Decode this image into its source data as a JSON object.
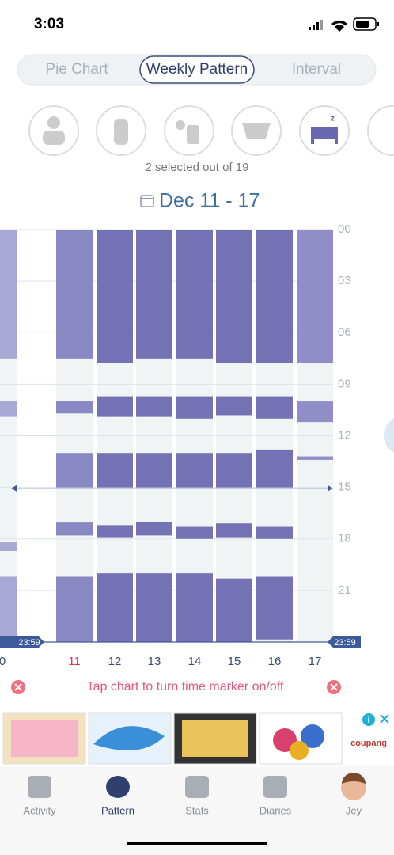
{
  "status": {
    "time": "3:03"
  },
  "tabs": [
    "Pie Chart",
    "Weekly Pattern",
    "Interval"
  ],
  "selected_tab": 1,
  "selected_text": "2 selected out of 19",
  "date_range": "Dec 11 - 17",
  "chart": {
    "hour_ticks": [
      {
        "value": 0,
        "label": "00"
      },
      {
        "value": 3,
        "label": "03"
      },
      {
        "value": 6,
        "label": "06"
      },
      {
        "value": 9,
        "label": "09"
      },
      {
        "value": 12,
        "label": "12"
      },
      {
        "value": 15,
        "label": "15"
      },
      {
        "value": 18,
        "label": "18"
      },
      {
        "value": 21,
        "label": "21"
      }
    ],
    "range": [
      0,
      24
    ],
    "end_label": "23:59",
    "time_marker": 15.05,
    "previous_day": {
      "label": "0",
      "color": "#a9a7d3",
      "segments": [
        [
          0,
          7.5
        ],
        [
          10,
          10.9
        ],
        [
          18.2,
          18.7
        ],
        [
          20.2,
          23.7
        ]
      ]
    },
    "days": [
      {
        "label": "11",
        "label_color": "#d8364a",
        "color": "#8a88c3",
        "segments": [
          [
            0,
            7.5
          ],
          [
            10,
            10.7
          ],
          [
            13,
            15
          ],
          [
            17.05,
            17.8
          ],
          [
            20.2,
            24
          ]
        ]
      },
      {
        "label": "12",
        "label_color": "#3a4a6a",
        "color": "#7472b5",
        "segments": [
          [
            0,
            7.75
          ],
          [
            9.7,
            10.9
          ],
          [
            13,
            15
          ],
          [
            17.2,
            17.9
          ],
          [
            20,
            24
          ]
        ]
      },
      {
        "label": "13",
        "label_color": "#3a4a6a",
        "color": "#7472b5",
        "segments": [
          [
            0,
            7.5
          ],
          [
            9.7,
            10.9
          ],
          [
            13,
            15
          ],
          [
            17,
            17.8
          ],
          [
            20,
            24
          ]
        ]
      },
      {
        "label": "14",
        "label_color": "#3a4a6a",
        "color": "#7472b5",
        "segments": [
          [
            0,
            7.5
          ],
          [
            9.7,
            11
          ],
          [
            13,
            15
          ],
          [
            17.3,
            18
          ],
          [
            20,
            24
          ]
        ]
      },
      {
        "label": "15",
        "label_color": "#3a4a6a",
        "color": "#7472b5",
        "segments": [
          [
            0,
            7.75
          ],
          [
            9.7,
            10.8
          ],
          [
            13,
            15
          ],
          [
            17.1,
            17.9
          ],
          [
            20.3,
            24
          ]
        ]
      },
      {
        "label": "16",
        "label_color": "#3a4a6a",
        "color": "#7472b5",
        "segments": [
          [
            0,
            7.75
          ],
          [
            9.7,
            11
          ],
          [
            12.8,
            15
          ],
          [
            17.3,
            18
          ],
          [
            20.2,
            23.85
          ]
        ]
      },
      {
        "label": "17",
        "label_color": "#3a4a6a",
        "color": "#908dc7",
        "segments": [
          [
            0,
            7.75
          ],
          [
            10,
            11.2
          ],
          [
            13.2,
            13.4
          ]
        ]
      }
    ]
  },
  "hint": "Tap chart to turn time marker on/off",
  "ad_brand": "coupang",
  "nav": [
    "Activity",
    "Pattern",
    "Stats",
    "Diaries",
    "Jey"
  ],
  "selected_nav": 1
}
